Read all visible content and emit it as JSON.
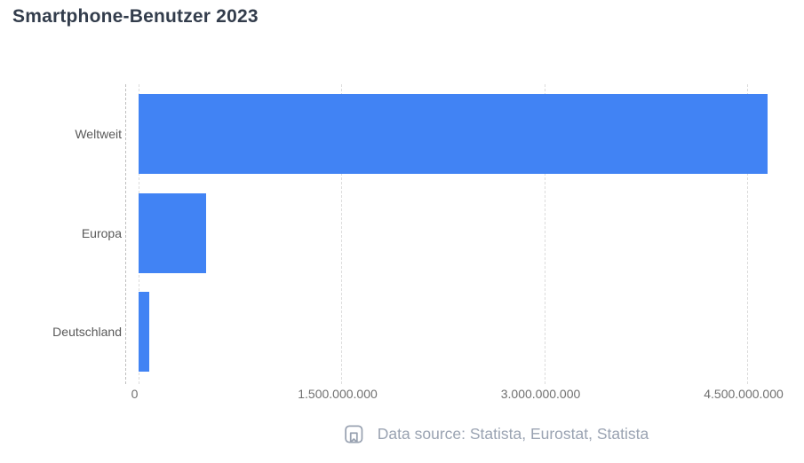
{
  "header": {
    "title": "Smartphone-Benutzer 2023"
  },
  "chart_data": {
    "type": "bar",
    "orientation": "horizontal",
    "title": "Smartphone-Benutzer 2023",
    "categories": [
      "Weltweit",
      "Europa",
      "Deutschland"
    ],
    "values": [
      4650000000,
      500000000,
      80000000
    ],
    "xlabel": "",
    "ylabel": "",
    "x_ticks": [
      {
        "value": 0,
        "label": "0"
      },
      {
        "value": 1500000000,
        "label": "1.500.000.000"
      },
      {
        "value": 3000000000,
        "label": "3.000.000.000"
      },
      {
        "value": 4500000000,
        "label": "4.500.000.000"
      }
    ],
    "xlim": [
      0,
      4700000000
    ],
    "bar_color": "#4183f4",
    "grid": "vertical-dashed",
    "legend": "none"
  },
  "footer": {
    "icon": "book-bookmark-icon",
    "text": "Data source: Statista, Eurostat, Statista",
    "color": "#9aa3b2"
  }
}
